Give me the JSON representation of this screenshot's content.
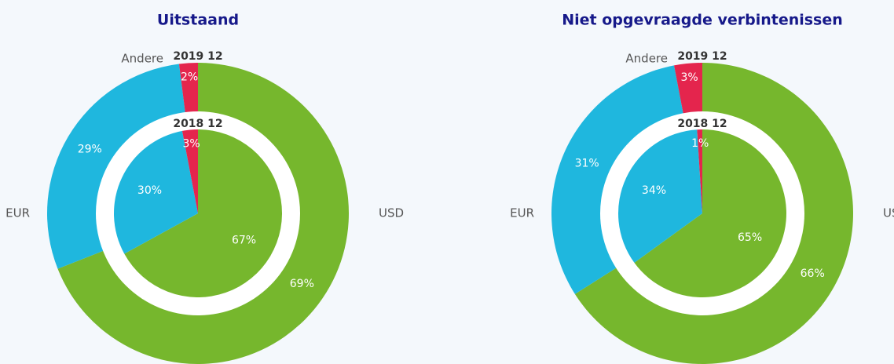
{
  "chart_data": [
    {
      "type": "pie",
      "title": "Uitstaand",
      "categories": [
        "USD",
        "EUR",
        "Andere"
      ],
      "colors": [
        "#76b72d",
        "#1fb7de",
        "#e4254d"
      ],
      "series": [
        {
          "name": "2019 12",
          "values": [
            69,
            29,
            2
          ],
          "value_labels": [
            "69%",
            "29%",
            "2%"
          ]
        },
        {
          "name": "2018 12",
          "values": [
            67,
            30,
            3
          ],
          "value_labels": [
            "67%",
            "30%",
            "3%"
          ]
        }
      ]
    },
    {
      "type": "pie",
      "title": "Niet opgevraagde verbintenissen",
      "categories": [
        "USD",
        "EUR",
        "Andere"
      ],
      "colors": [
        "#76b72d",
        "#1fb7de",
        "#e4254d"
      ],
      "series": [
        {
          "name": "2019 12",
          "values": [
            66,
            31,
            3
          ],
          "value_labels": [
            "66%",
            "31%",
            "3%"
          ]
        },
        {
          "name": "2018 12",
          "values": [
            65,
            34,
            1
          ],
          "value_labels": [
            "65%",
            "34%",
            "1%"
          ]
        }
      ]
    }
  ]
}
